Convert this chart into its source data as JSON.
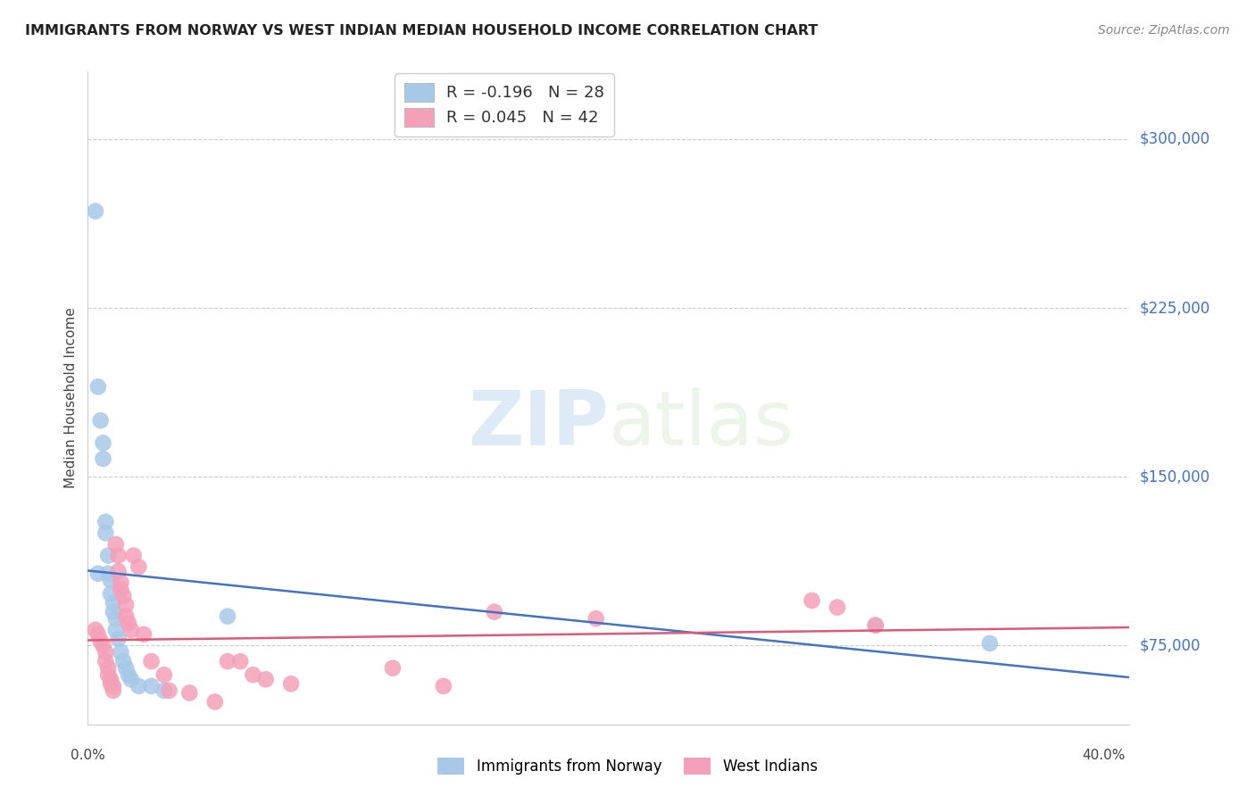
{
  "title": "IMMIGRANTS FROM NORWAY VS WEST INDIAN MEDIAN HOUSEHOLD INCOME CORRELATION CHART",
  "source": "Source: ZipAtlas.com",
  "ylabel": "Median Household Income",
  "ytick_labels": [
    "$75,000",
    "$150,000",
    "$225,000",
    "$300,000"
  ],
  "ytick_values": [
    75000,
    150000,
    225000,
    300000
  ],
  "ylim": [
    40000,
    330000
  ],
  "xlim": [
    0.0,
    0.41
  ],
  "norway_R": -0.196,
  "norway_N": 28,
  "westindian_R": 0.045,
  "westindian_N": 42,
  "norway_color": "#a8c8e8",
  "westindian_color": "#f4a0b8",
  "norway_line_color": "#4472c4",
  "westindian_line_color": "#e05878",
  "background_color": "#ffffff",
  "norway_x": [
    0.003,
    0.004,
    0.005,
    0.006,
    0.006,
    0.007,
    0.007,
    0.008,
    0.008,
    0.009,
    0.009,
    0.01,
    0.01,
    0.011,
    0.011,
    0.012,
    0.013,
    0.014,
    0.015,
    0.016,
    0.017,
    0.02,
    0.025,
    0.03,
    0.055,
    0.31,
    0.355,
    0.004
  ],
  "norway_y": [
    268000,
    190000,
    175000,
    165000,
    158000,
    130000,
    125000,
    115000,
    107000,
    104000,
    98000,
    94000,
    90000,
    87000,
    82000,
    78000,
    72000,
    68000,
    65000,
    62000,
    60000,
    57000,
    57000,
    55000,
    88000,
    84000,
    76000,
    107000
  ],
  "westindian_x": [
    0.003,
    0.004,
    0.005,
    0.006,
    0.007,
    0.007,
    0.008,
    0.008,
    0.009,
    0.009,
    0.01,
    0.01,
    0.011,
    0.012,
    0.012,
    0.013,
    0.013,
    0.014,
    0.015,
    0.015,
    0.016,
    0.017,
    0.018,
    0.02,
    0.022,
    0.025,
    0.03,
    0.032,
    0.04,
    0.05,
    0.055,
    0.06,
    0.065,
    0.07,
    0.08,
    0.12,
    0.14,
    0.16,
    0.2,
    0.285,
    0.295,
    0.31
  ],
  "westindian_y": [
    82000,
    80000,
    77000,
    75000,
    72000,
    68000,
    65000,
    62000,
    60000,
    58000,
    57000,
    55000,
    120000,
    115000,
    108000,
    103000,
    100000,
    97000,
    93000,
    88000,
    85000,
    82000,
    115000,
    110000,
    80000,
    68000,
    62000,
    55000,
    54000,
    50000,
    68000,
    68000,
    62000,
    60000,
    58000,
    65000,
    57000,
    90000,
    87000,
    95000,
    92000,
    84000
  ]
}
